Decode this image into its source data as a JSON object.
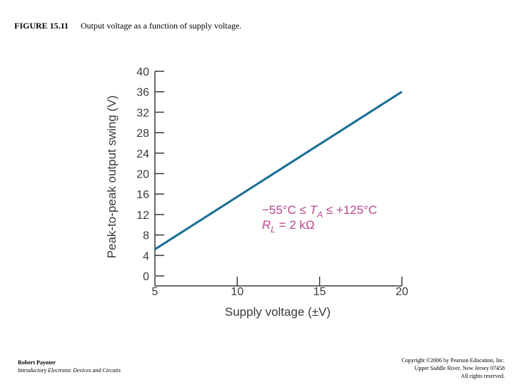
{
  "figure": {
    "label": "FIGURE 15.11",
    "caption": "Output voltage as a function of supply voltage."
  },
  "chart_data": {
    "type": "line",
    "xlabel": "Supply voltage (±V)",
    "ylabel": "Peak-to-peak output swing (V)",
    "xlim": [
      5,
      20
    ],
    "ylim": [
      0,
      40
    ],
    "x_ticks": [
      5,
      10,
      15,
      20
    ],
    "y_ticks": [
      0,
      4,
      8,
      12,
      16,
      20,
      24,
      28,
      32,
      36,
      40
    ],
    "grid": false,
    "series": [
      {
        "x": [
          5,
          20
        ],
        "y": [
          5.2,
          36
        ],
        "color": "#1a6e96"
      }
    ],
    "annotations": [
      {
        "text": "−55°C ≤ T_A ≤ +125°C"
      },
      {
        "text": "R_L = 2 kΩ"
      }
    ],
    "annotation_color": "#b8488c"
  },
  "footer": {
    "author": "Robert Paynter",
    "book": "Introductory Electronic Devices and Circuits",
    "copyright_lines": [
      "Copyright ©2006 by Pearson Education, Inc.",
      "Upper Saddle River, New Jersey 07458",
      "All rights reserved."
    ]
  }
}
